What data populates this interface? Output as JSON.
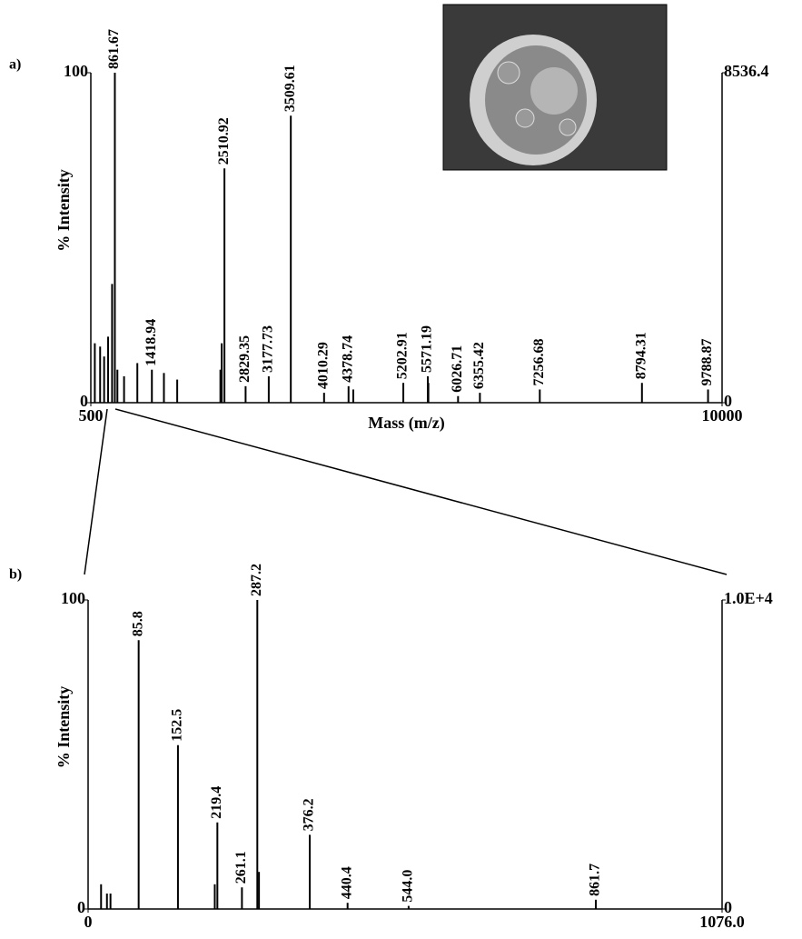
{
  "chart_data": [
    {
      "type": "stem",
      "panel": "a)",
      "ylabel": "% Intensity",
      "xlabel": "Mass (m/z)",
      "xlim": [
        500,
        10000
      ],
      "xticks": [
        500,
        10000
      ],
      "ylim": [
        0,
        100
      ],
      "yticks": [
        0,
        100
      ],
      "y2lim": [
        0,
        8536.4
      ],
      "y2ticks": [
        0,
        8536.4
      ],
      "color": "#000000",
      "x": [
        861.67,
        1418.94,
        2510.92,
        2829.35,
        3177.73,
        3509.61,
        4010.29,
        4378.74,
        5202.91,
        5571.19,
        6026.71,
        6355.42,
        7256.68,
        8794.31,
        9788.87
      ],
      "values": [
        100,
        10,
        71,
        5,
        8,
        87,
        3,
        5,
        6,
        8,
        2,
        3,
        4,
        6,
        4
      ],
      "other_x": [
        560,
        640,
        700,
        760,
        820,
        900,
        1000,
        1200,
        1600,
        1800,
        2450,
        2470,
        4450,
        5580
      ],
      "other_values": [
        18,
        17,
        14,
        20,
        36,
        10,
        8,
        12,
        9,
        7,
        10,
        18,
        4,
        6
      ]
    },
    {
      "type": "stem",
      "panel": "b)",
      "ylabel": "% Intensity",
      "xlim": [
        0,
        1076
      ],
      "xticks": [
        0,
        {
          "value": 1076,
          "label": "1076.0"
        }
      ],
      "ylim": [
        0,
        100
      ],
      "yticks": [
        0,
        100
      ],
      "y2lim": [
        0,
        10000
      ],
      "y2ticks": [
        0,
        {
          "value": 10000,
          "label": "1.0E+4"
        }
      ],
      "color": "#000000",
      "x": [
        85.8,
        152.5,
        219.4,
        261.1,
        287.2,
        376.2,
        440.4,
        {
          "value": 544,
          "label": "544.0"
        },
        861.7
      ],
      "values": [
        87,
        53,
        28,
        7,
        100,
        24,
        2,
        1,
        3
      ],
      "other_x": [
        22,
        32,
        38,
        215,
        290
      ],
      "other_values": [
        8,
        5,
        5,
        8,
        12
      ]
    }
  ]
}
